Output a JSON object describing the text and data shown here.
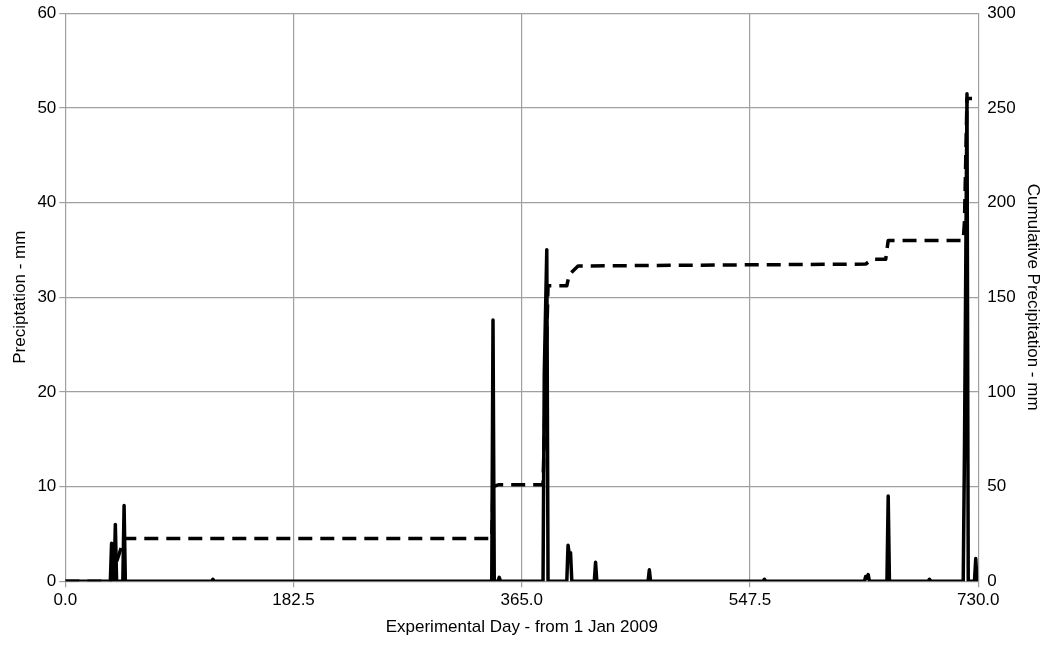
{
  "chart_data": {
    "type": "line",
    "xlabel": "Experimental Day - from 1 Jan 2009",
    "ylabel": "Preciptation - mm",
    "y2label": "Cumulative Precipitation - mm",
    "xlim": [
      0,
      730
    ],
    "xticks": [
      {
        "value": 0,
        "label": "0.0"
      },
      {
        "value": 182.5,
        "label": "182.5"
      },
      {
        "value": 365,
        "label": "365.0"
      },
      {
        "value": 547.5,
        "label": "547.5"
      },
      {
        "value": 730,
        "label": "730.0"
      }
    ],
    "ylim": [
      0,
      60
    ],
    "yticks": [
      0,
      10,
      20,
      30,
      40,
      50,
      60
    ],
    "y2lim": [
      0,
      300
    ],
    "y2ticks": [
      0,
      50,
      100,
      150,
      200,
      250,
      300
    ],
    "grid": true,
    "legend": false,
    "marker": "none",
    "series": [
      {
        "color": "#000000",
        "line_style": "solid",
        "x": [
          0,
          36,
          37,
          38,
          39,
          40,
          41,
          46,
          47,
          48,
          117,
          118,
          119,
          341,
          342,
          343,
          346,
          347,
          348,
          382,
          383,
          385,
          386,
          401,
          402,
          403,
          404,
          405,
          423,
          424,
          425,
          466,
          467,
          468,
          558,
          559,
          560,
          639,
          640,
          641,
          642,
          643,
          657,
          658,
          659,
          690,
          691,
          692,
          718,
          719,
          721,
          722,
          727,
          728,
          729,
          730
        ],
        "values": [
          0,
          0,
          4,
          0,
          0,
          6,
          0,
          0,
          8,
          0,
          0,
          0.2,
          0,
          0,
          27.6,
          0,
          0,
          0.4,
          0,
          0,
          22,
          35,
          0,
          0,
          3.8,
          2.8,
          3,
          0,
          0,
          2,
          0,
          0,
          1.2,
          0,
          0,
          0.2,
          0,
          0,
          0.5,
          0.3,
          0.7,
          0,
          0,
          9,
          0,
          0,
          0.2,
          0,
          0,
          14,
          51.5,
          0,
          0,
          2.4,
          0,
          0
        ]
      },
      {
        "color": "#000000",
        "line_style": "dashed",
        "axis": "y2",
        "x": [
          0,
          36,
          47,
          341,
          342,
          347,
          382,
          386,
          401,
          403,
          410,
          640,
          645,
          656,
          658,
          718,
          719,
          721,
          725
        ],
        "values": [
          0,
          0,
          22.5,
          22.5,
          50,
          51,
          51,
          156,
          156,
          162,
          166.5,
          167.5,
          170,
          170,
          180,
          180,
          190,
          255,
          255
        ]
      }
    ]
  }
}
